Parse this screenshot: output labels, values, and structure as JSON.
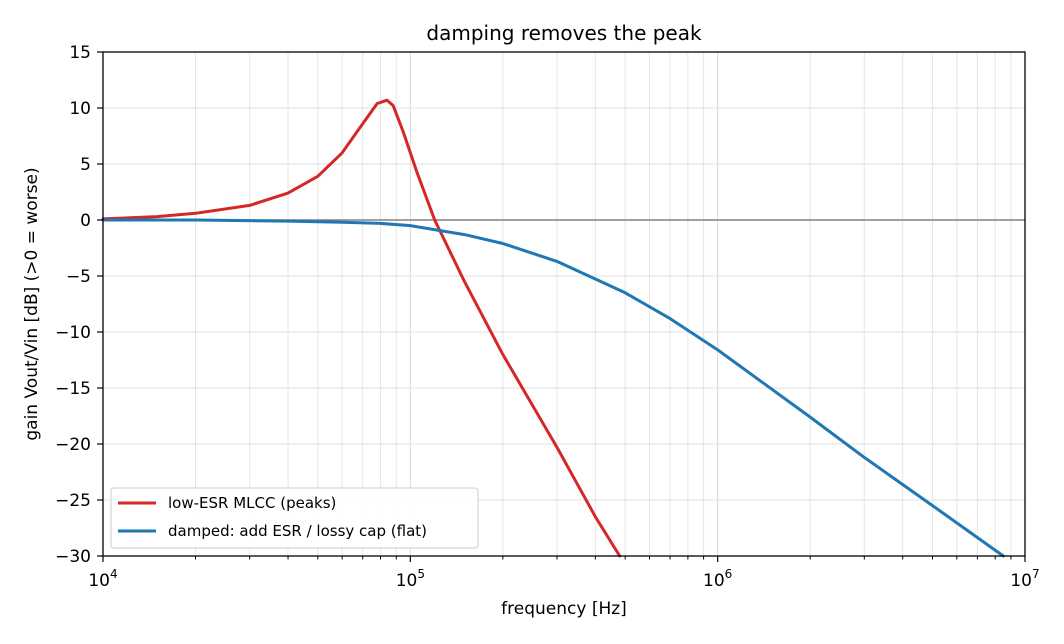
{
  "chart_data": {
    "type": "line",
    "title": "damping removes the peak",
    "xlabel": "frequency [Hz]",
    "ylabel": "gain Vout/Vin [dB]  (>0 = worse)",
    "xscale": "log",
    "xlim": [
      10000,
      10000000
    ],
    "ylim": [
      -30,
      15
    ],
    "grid": true,
    "legend_position": "lower-left",
    "x_ticks": [
      {
        "value": 10000,
        "base": "10",
        "exp": "4"
      },
      {
        "value": 100000,
        "base": "10",
        "exp": "5"
      },
      {
        "value": 1000000,
        "base": "10",
        "exp": "6"
      },
      {
        "value": 10000000,
        "base": "10",
        "exp": "7"
      }
    ],
    "y_ticks": [
      15,
      10,
      5,
      0,
      -5,
      -10,
      -15,
      -20,
      -25,
      -30
    ],
    "reference_line_y": 0,
    "series": [
      {
        "name": "low-ESR MLCC (peaks)",
        "color": "#d62728",
        "x": [
          10000,
          15000,
          20000,
          30000,
          40000,
          50000,
          60000,
          70000,
          78000,
          84000,
          88000,
          95000,
          105000,
          120000,
          150000,
          200000,
          300000,
          400000,
          480000
        ],
        "y": [
          0.1,
          0.3,
          0.6,
          1.3,
          2.4,
          3.9,
          6.0,
          8.6,
          10.4,
          10.7,
          10.2,
          7.8,
          4.3,
          0.0,
          -5.5,
          -12.0,
          -20.3,
          -26.5,
          -30.0
        ]
      },
      {
        "name": "damped: add ESR / lossy cap (flat)",
        "color": "#1f77b4",
        "x": [
          10000,
          20000,
          40000,
          60000,
          80000,
          100000,
          150000,
          200000,
          300000,
          500000,
          700000,
          1000000,
          2000000,
          3000000,
          5000000,
          8500000
        ],
        "y": [
          0.0,
          0.0,
          -0.1,
          -0.2,
          -0.3,
          -0.5,
          -1.3,
          -2.1,
          -3.7,
          -6.5,
          -8.8,
          -11.6,
          -17.6,
          -21.2,
          -25.5,
          -30.0
        ]
      }
    ]
  }
}
